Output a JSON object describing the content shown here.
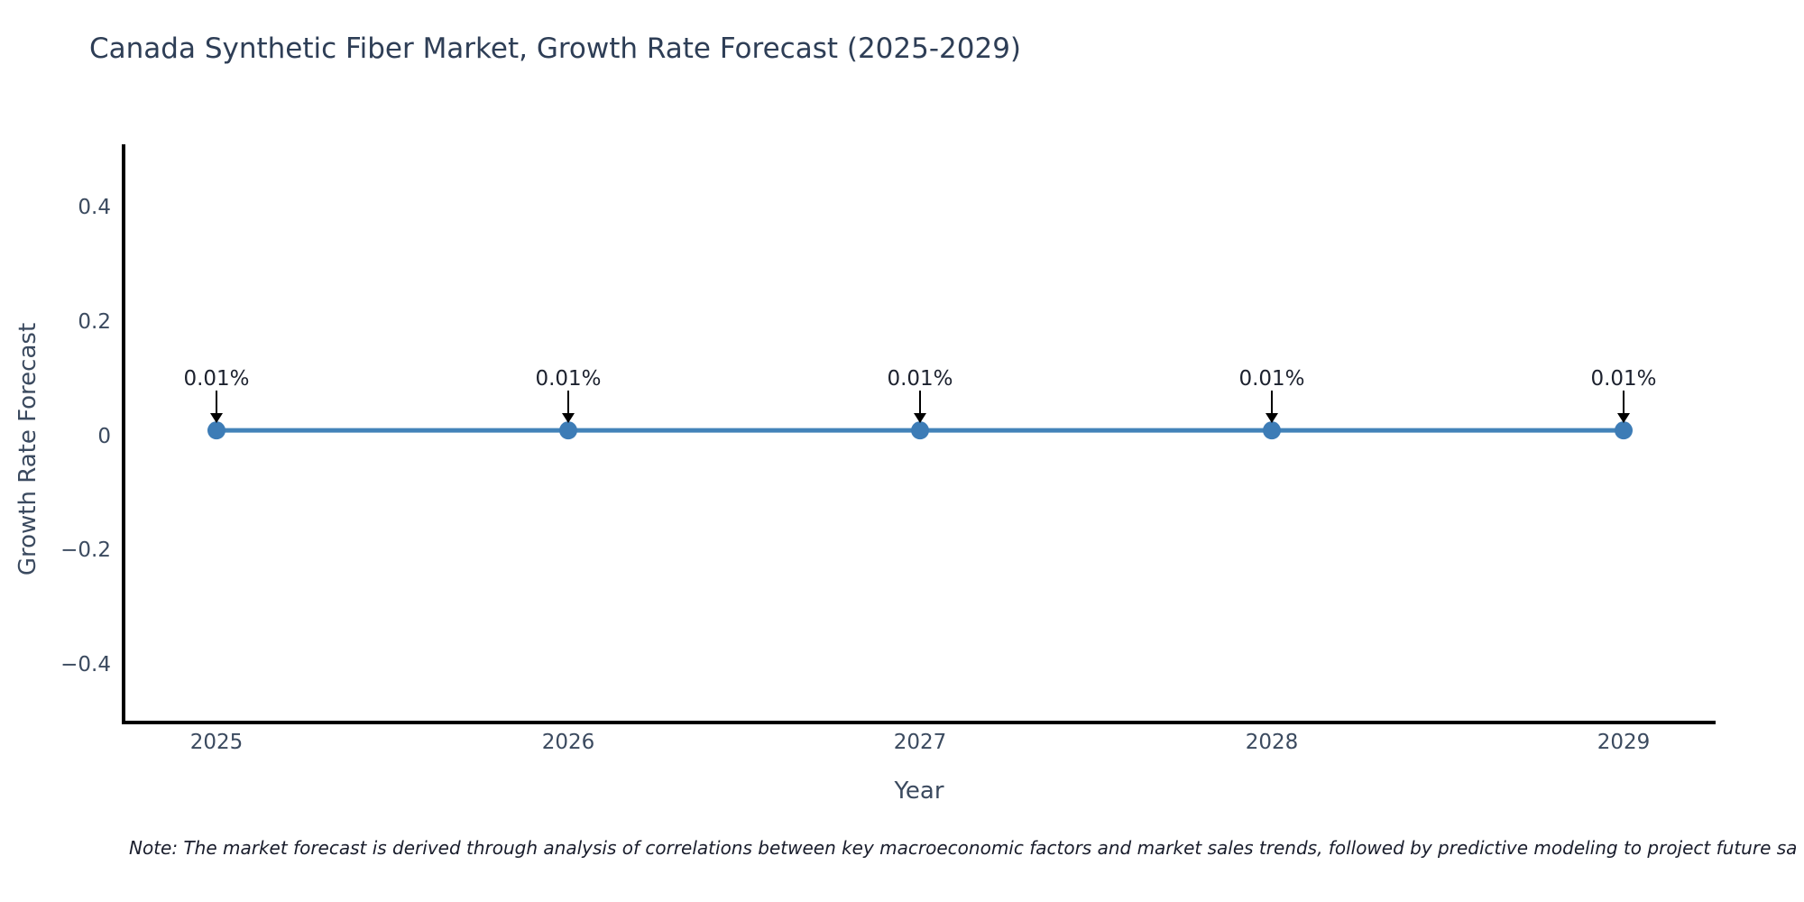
{
  "figure": {
    "note": "Note: The market forecast is derived through analysis of correlations between key macroeconomic factors and market sales trends, followed by predictive modeling to project future sa"
  },
  "chart_data": {
    "type": "line",
    "title": "Canada Synthetic Fiber Market, Growth Rate Forecast (2025-2029)",
    "xlabel": "Year",
    "ylabel": "Growth Rate Forecast",
    "x": [
      2025,
      2026,
      2027,
      2028,
      2029
    ],
    "series": [
      {
        "name": "Growth Rate Forecast",
        "values": [
          0.01,
          0.01,
          0.01,
          0.01,
          0.01
        ]
      }
    ],
    "point_labels": [
      "0.01%",
      "0.01%",
      "0.01%",
      "0.01%",
      "0.01%"
    ],
    "xticks": [
      "2025",
      "2026",
      "2027",
      "2028",
      "2029"
    ],
    "yticks": [
      {
        "label": "0.4",
        "value": 0.4
      },
      {
        "label": "0.2",
        "value": 0.2
      },
      {
        "label": "0",
        "value": 0
      },
      {
        "label": "−0.2",
        "value": -0.2
      },
      {
        "label": "−0.4",
        "value": -0.4
      }
    ],
    "ylim": [
      -0.501,
      0.5105
    ],
    "grid": false,
    "legend": false,
    "annotation_arrows": true,
    "colors": {
      "line": "#4383b9",
      "marker": "#3d7cb6",
      "axis": "#000000",
      "title": "#2e3e56",
      "tick": "#3b4a5f",
      "annotation": "#1c212e",
      "note": "#191d2c"
    }
  }
}
